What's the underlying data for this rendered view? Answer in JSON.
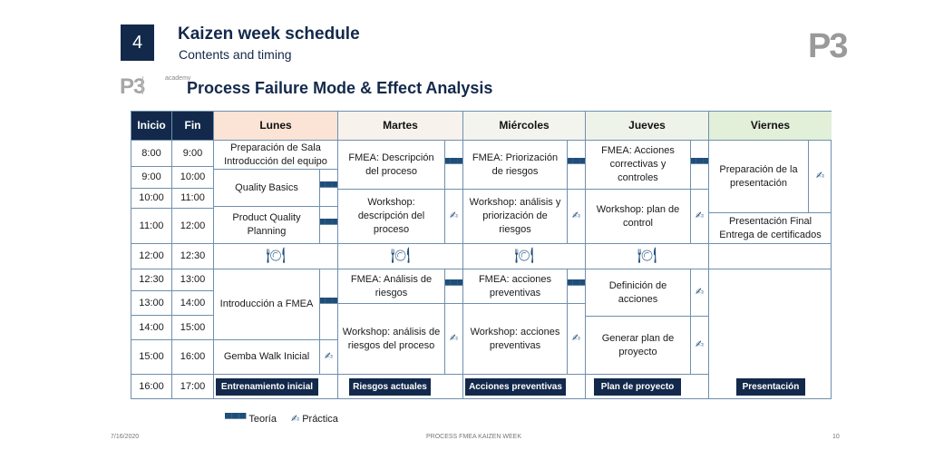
{
  "header": {
    "number": "4",
    "title": "Kaizen week schedule",
    "subtitle": "Contents and timing",
    "logo": "P3"
  },
  "brand": {
    "small_logo": "P3",
    "small_label": "academy"
  },
  "section_title": "Process Failure Mode & Effect Analysis",
  "table": {
    "col_inicio": "Inicio",
    "col_fin": "Fin",
    "days": [
      "Lunes",
      "Martes",
      "Miércoles",
      "Jueves",
      "Viernes"
    ],
    "times": [
      [
        "8:00",
        "9:00"
      ],
      [
        "9:00",
        "10:00"
      ],
      [
        "10:00",
        "11:00"
      ],
      [
        "11:00",
        "12:00"
      ],
      [
        "12:00",
        "12:30"
      ],
      [
        "12:30",
        "13:00"
      ],
      [
        "13:00",
        "14:00"
      ],
      [
        "14:00",
        "15:00"
      ],
      [
        "15:00",
        "16:00"
      ],
      [
        "16:00",
        "17:00"
      ]
    ],
    "lunes": {
      "a": "Preparación de Sala Introducción del equipo",
      "b": "Quality Basics",
      "c": "Product Quality Planning",
      "d": "Introducción a FMEA",
      "e": "Gemba Walk Inicial",
      "tag": "Entrenamiento inicial"
    },
    "martes": {
      "a": "FMEA: Descripción del proceso",
      "b": "Workshop: descripción del proceso",
      "c": "FMEA: Análisis de riesgos",
      "d": "Workshop: análisis de riesgos del proceso",
      "tag": "Riesgos actuales"
    },
    "miercoles": {
      "a": "FMEA: Priorización de riesgos",
      "b": "Workshop: análisis y priorización de riesgos",
      "c": "FMEA: acciones preventivas",
      "d": "Workshop: acciones preventivas",
      "tag": "Acciones preventivas"
    },
    "jueves": {
      "a": "FMEA: Acciones correctivas y controles",
      "b": "Workshop: plan de control",
      "c": "Definición de acciones",
      "d": "Generar plan de proyecto",
      "tag": "Plan de proyecto"
    },
    "viernes": {
      "a": "Preparación de la presentación",
      "b": "Presentación Final Entrega de certificados",
      "tag": "Presentación"
    },
    "icons": {
      "teoria": "group-icon",
      "practica": "hand-practice-icon",
      "lunch": "food-plate-icon"
    }
  },
  "legend": {
    "teoria": "Teoría",
    "practica": "Práctica"
  },
  "footer": {
    "date": "7/16/2020",
    "center": "PROCESS FMEA KAIZEN WEEK",
    "page": "10"
  },
  "colors": {
    "navy": "#13294b",
    "lunes_header": "#fbe4d5",
    "viernes_header": "#e2efd9",
    "border": "#6f8fae"
  }
}
